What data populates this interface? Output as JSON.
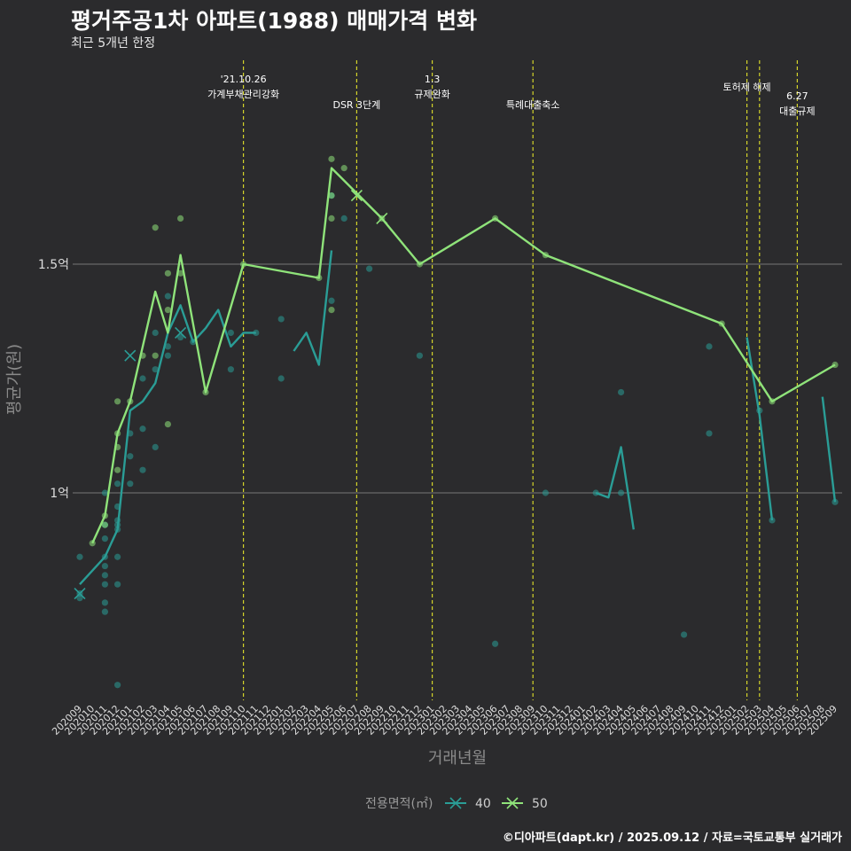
{
  "title": "평거주공1차 아파트(1988) 매매가격 변화",
  "subtitle": "최근 5개년 한정",
  "caption": "©디아파트(dapt.kr) / 2025.09.12 / 자료=국토교통부 실거래가",
  "colors": {
    "background": "#2b2b2d",
    "series_40": "#2a9d96",
    "series_50": "#8fe37a",
    "event_line": "#d4d42a",
    "grid": "#5e5e5e"
  },
  "chart_data": {
    "type": "line",
    "xlabel": "거래년월",
    "ylabel": "평균가(원)",
    "ylim": [
      0.55,
      2.0
    ],
    "y_ticks": [
      {
        "value": 1.0,
        "label": "1억"
      },
      {
        "value": 1.5,
        "label": "1.5억"
      }
    ],
    "x": [
      "202009",
      "202010",
      "202011",
      "202012",
      "202101",
      "202102",
      "202103",
      "202104",
      "202105",
      "202106",
      "202107",
      "202108",
      "202109",
      "202110",
      "202111",
      "202112",
      "202201",
      "202202",
      "202203",
      "202204",
      "202205",
      "202206",
      "202207",
      "202208",
      "202209",
      "202210",
      "202211",
      "202212",
      "202301",
      "202302",
      "202303",
      "202304",
      "202305",
      "202306",
      "202307",
      "202308",
      "202309",
      "202310",
      "202311",
      "202312",
      "202401",
      "202402",
      "202403",
      "202404",
      "202405",
      "202406",
      "202407",
      "202408",
      "202409",
      "202410",
      "202411",
      "202412",
      "202501",
      "202502",
      "202503",
      "202504",
      "202505",
      "202506",
      "202507",
      "202508",
      "202509"
    ],
    "legend": {
      "title": "전용면적(㎡)",
      "position": "bottom",
      "items": [
        "40",
        "50"
      ]
    },
    "events": [
      {
        "x": "202110",
        "label": "'21.10.26\n가계부채관리강화"
      },
      {
        "x": "202207",
        "label": "DSR 3단계"
      },
      {
        "x": "202301",
        "label": "1.3\n규제완화"
      },
      {
        "x": "202309",
        "label": "특례대출축소"
      },
      {
        "x": "202502",
        "label": "토허제 해제"
      },
      {
        "x": "202503",
        "label": ""
      },
      {
        "x": "202506",
        "label": "6.27\n대출규제"
      }
    ],
    "series": [
      {
        "name": "40",
        "line": [
          [
            [
              "202009",
              0.8
            ],
            [
              "202011",
              0.86
            ],
            [
              "202012",
              0.92
            ],
            [
              "202101",
              1.18
            ],
            [
              "202102",
              1.2
            ],
            [
              "202103",
              1.24
            ],
            [
              "202104",
              1.35
            ],
            [
              "202105",
              1.41
            ],
            [
              "202106",
              1.33
            ],
            [
              "202107",
              1.36
            ],
            [
              "202108",
              1.4
            ],
            [
              "202109",
              1.32
            ],
            [
              "202110",
              1.35
            ],
            [
              "202111",
              1.35
            ]
          ],
          [
            [
              "202202",
              1.31
            ],
            [
              "202203",
              1.35
            ],
            [
              "202204",
              1.28
            ],
            [
              "202205",
              1.53
            ]
          ],
          [
            [
              "202402",
              1.0
            ],
            [
              "202403",
              0.99
            ],
            [
              "202404",
              1.1
            ],
            [
              "202405",
              0.92
            ]
          ],
          [
            [
              "202502",
              1.34
            ],
            [
              "202503",
              1.17
            ],
            [
              "202504",
              0.94
            ]
          ],
          [
            [
              "202508",
              1.21
            ],
            [
              "202509",
              0.98
            ]
          ]
        ],
        "points": [
          [
            "202009",
            0.86
          ],
          [
            "202009",
            0.78
          ],
          [
            "202009",
            0.77
          ],
          [
            "202011",
            1.0
          ],
          [
            "202011",
            0.93
          ],
          [
            "202011",
            0.9
          ],
          [
            "202011",
            0.86
          ],
          [
            "202011",
            0.84
          ],
          [
            "202011",
            0.82
          ],
          [
            "202011",
            0.8
          ],
          [
            "202011",
            0.76
          ],
          [
            "202011",
            0.74
          ],
          [
            "202012",
            1.02
          ],
          [
            "202012",
            0.97
          ],
          [
            "202012",
            0.94
          ],
          [
            "202012",
            0.93
          ],
          [
            "202012",
            0.92
          ],
          [
            "202012",
            0.86
          ],
          [
            "202012",
            0.8
          ],
          [
            "202012",
            0.58
          ],
          [
            "202101",
            1.13
          ],
          [
            "202101",
            1.08
          ],
          [
            "202101",
            1.02
          ],
          [
            "202102",
            1.25
          ],
          [
            "202102",
            1.14
          ],
          [
            "202102",
            1.05
          ],
          [
            "202103",
            1.35
          ],
          [
            "202103",
            1.27
          ],
          [
            "202103",
            1.1
          ],
          [
            "202104",
            1.43
          ],
          [
            "202104",
            1.32
          ],
          [
            "202104",
            1.3
          ],
          [
            "202105",
            1.34
          ],
          [
            "202106",
            1.33
          ],
          [
            "202109",
            1.35
          ],
          [
            "202109",
            1.27
          ],
          [
            "202111",
            1.35
          ],
          [
            "202201",
            1.38
          ],
          [
            "202201",
            1.25
          ],
          [
            "202205",
            1.65
          ],
          [
            "202205",
            1.42
          ],
          [
            "202206",
            1.6
          ],
          [
            "202208",
            1.49
          ],
          [
            "202212",
            1.3
          ],
          [
            "202306",
            0.67
          ],
          [
            "202310",
            1.0
          ],
          [
            "202402",
            1.0
          ],
          [
            "202404",
            1.22
          ],
          [
            "202404",
            1.0
          ],
          [
            "202409",
            0.69
          ],
          [
            "202411",
            1.32
          ],
          [
            "202411",
            1.13
          ],
          [
            "202503",
            1.18
          ],
          [
            "202504",
            0.94
          ],
          [
            "202509",
            0.98
          ]
        ],
        "cancelled": [
          [
            "202009",
            0.78
          ],
          [
            "202101",
            1.3
          ],
          [
            "202105",
            1.35
          ]
        ]
      },
      {
        "name": "50",
        "line": [
          [
            [
              "202010",
              0.89
            ],
            [
              "202011",
              0.95
            ],
            [
              "202012",
              1.13
            ],
            [
              "202101",
              1.2
            ],
            [
              "202103",
              1.44
            ],
            [
              "202104",
              1.35
            ],
            [
              "202105",
              1.52
            ],
            [
              "202107",
              1.22
            ],
            [
              "202110",
              1.5
            ],
            [
              "202204",
              1.47
            ],
            [
              "202205",
              1.71
            ],
            [
              "202209",
              1.6
            ],
            [
              "202212",
              1.5
            ],
            [
              "202306",
              1.6
            ],
            [
              "202310",
              1.52
            ],
            [
              "202412",
              1.37
            ],
            [
              "202504",
              1.2
            ],
            [
              "202509",
              1.28
            ]
          ]
        ],
        "points": [
          [
            "202010",
            0.89
          ],
          [
            "202011",
            0.95
          ],
          [
            "202011",
            0.93
          ],
          [
            "202012",
            1.2
          ],
          [
            "202012",
            1.13
          ],
          [
            "202012",
            1.1
          ],
          [
            "202012",
            1.05
          ],
          [
            "202101",
            1.2
          ],
          [
            "202102",
            1.3
          ],
          [
            "202103",
            1.58
          ],
          [
            "202103",
            1.3
          ],
          [
            "202104",
            1.48
          ],
          [
            "202104",
            1.4
          ],
          [
            "202104",
            1.15
          ],
          [
            "202105",
            1.6
          ],
          [
            "202105",
            1.48
          ],
          [
            "202107",
            1.22
          ],
          [
            "202110",
            1.5
          ],
          [
            "202204",
            1.47
          ],
          [
            "202205",
            1.73
          ],
          [
            "202205",
            1.65
          ],
          [
            "202205",
            1.6
          ],
          [
            "202205",
            1.4
          ],
          [
            "202206",
            1.71
          ],
          [
            "202209",
            1.6
          ],
          [
            "202212",
            1.5
          ],
          [
            "202306",
            1.6
          ],
          [
            "202310",
            1.52
          ],
          [
            "202412",
            1.37
          ],
          [
            "202504",
            1.2
          ],
          [
            "202509",
            1.28
          ]
        ],
        "cancelled": [
          [
            "202207",
            1.65
          ],
          [
            "202209",
            1.6
          ]
        ]
      }
    ]
  }
}
